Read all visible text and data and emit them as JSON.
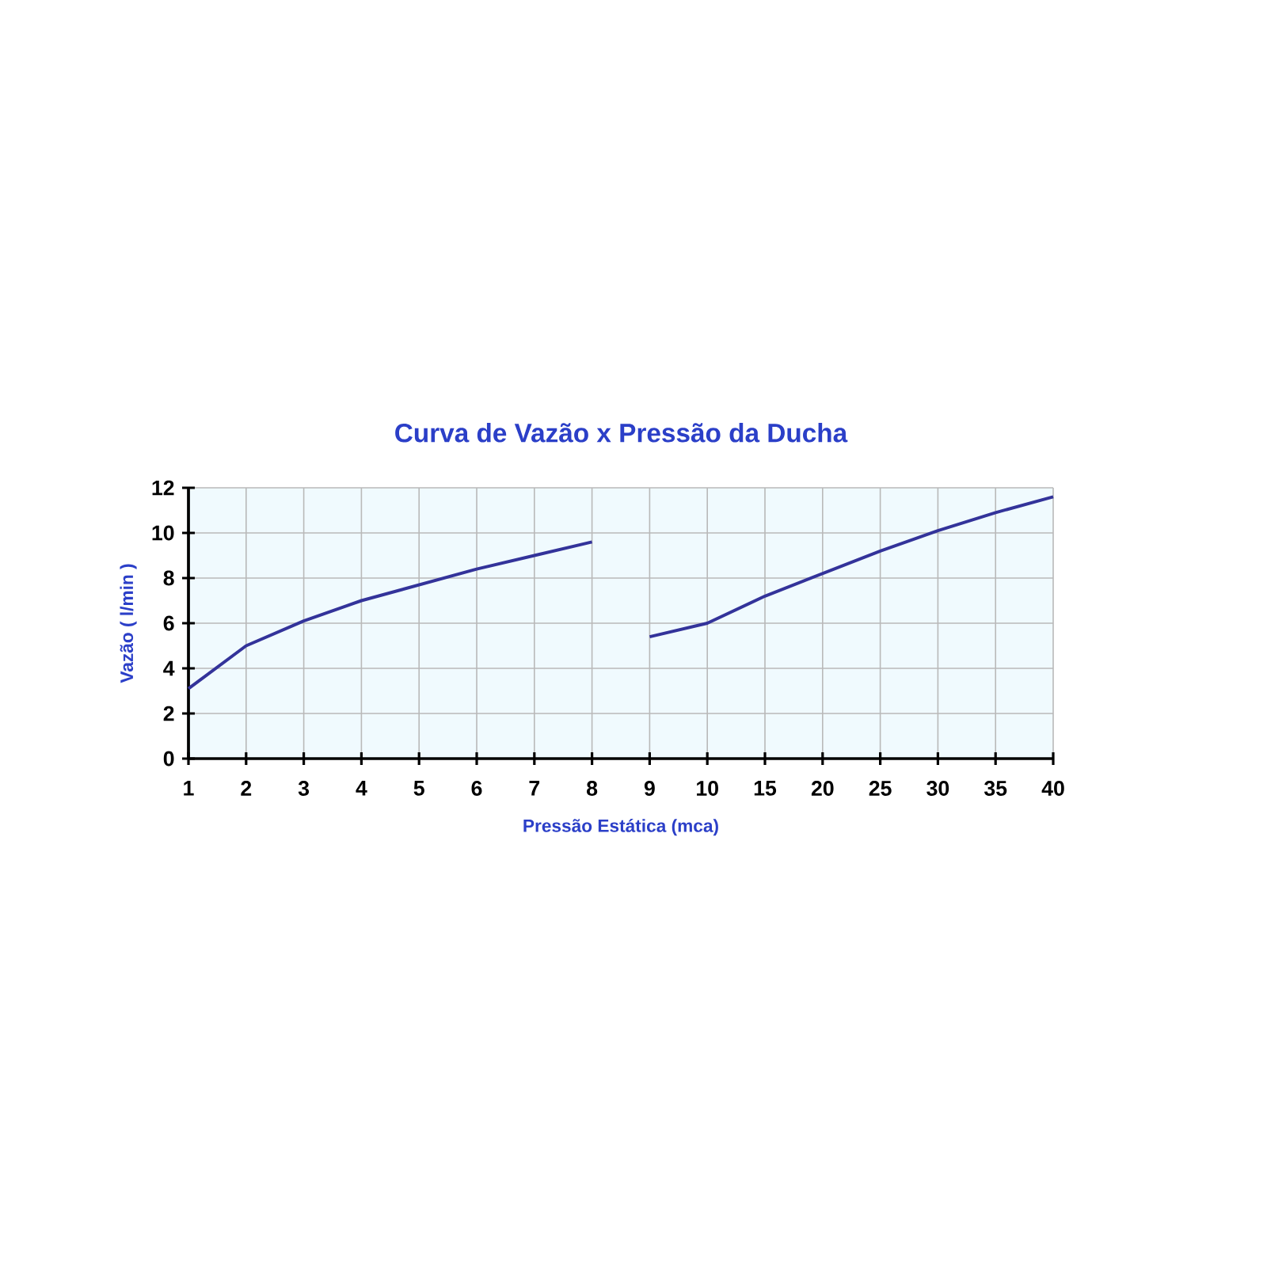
{
  "chart_data": {
    "type": "line",
    "title": "Curva de Vazão x Pressão da Ducha",
    "xlabel": "Pressão Estática (mca)",
    "ylabel": "Vazão ( l/min )",
    "categories": [
      "1",
      "2",
      "3",
      "4",
      "5",
      "6",
      "7",
      "8",
      "9",
      "10",
      "15",
      "20",
      "25",
      "30",
      "35",
      "40"
    ],
    "series": [
      {
        "color": "#33339a",
        "values": [
          3.1,
          5.0,
          6.1,
          7.0,
          7.7,
          8.4,
          9.0,
          9.6,
          null,
          null,
          null,
          null,
          null,
          null,
          null,
          null
        ]
      },
      {
        "color": "#33339a",
        "values": [
          null,
          null,
          null,
          null,
          null,
          null,
          null,
          null,
          5.4,
          6.0,
          7.2,
          8.2,
          9.2,
          10.1,
          10.9,
          11.6
        ]
      }
    ],
    "ylim": [
      0,
      12
    ],
    "yticks": [
      0,
      2,
      4,
      6,
      8,
      10,
      12
    ],
    "grid": true,
    "marker": "none",
    "line_style": "solid"
  }
}
